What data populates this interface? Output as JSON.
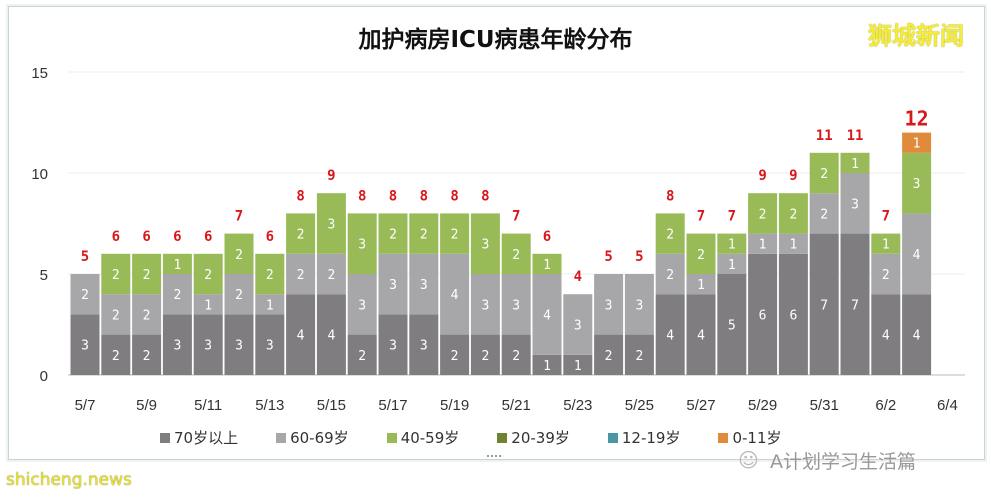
{
  "chart_data": {
    "type": "bar",
    "stacked": true,
    "title": "加护病房ICU病患年龄分布",
    "categories": [
      "5/7",
      "5/8",
      "5/9",
      "5/10",
      "5/11",
      "5/12",
      "5/13",
      "5/14",
      "5/15",
      "5/16",
      "5/17",
      "5/18",
      "5/19",
      "5/20",
      "5/21",
      "5/22",
      "5/23",
      "5/24",
      "5/25",
      "5/26",
      "5/27",
      "5/28",
      "5/29",
      "5/30",
      "5/31",
      "6/1",
      "6/2",
      "6/3"
    ],
    "x_tick_labels": [
      "5/7",
      "5/9",
      "5/11",
      "5/13",
      "5/15",
      "5/17",
      "5/19",
      "5/21",
      "5/23",
      "5/25",
      "5/27",
      "5/29",
      "5/31",
      "6/2",
      "6/4"
    ],
    "ylim": [
      0,
      15
    ],
    "y_ticks": [
      "0",
      "5",
      "10",
      "15"
    ],
    "grid": true,
    "legend_position": "bottom",
    "series": [
      {
        "name": "70岁以上",
        "color": "#7f7d80",
        "values": [
          3,
          2,
          2,
          3,
          3,
          3,
          3,
          4,
          4,
          2,
          3,
          3,
          2,
          2,
          2,
          1,
          1,
          2,
          2,
          4,
          4,
          5,
          6,
          6,
          7,
          7,
          4,
          4
        ]
      },
      {
        "name": "60-69岁",
        "color": "#a7a7a9",
        "values": [
          2,
          2,
          2,
          2,
          1,
          2,
          1,
          2,
          2,
          3,
          3,
          3,
          4,
          3,
          3,
          4,
          3,
          3,
          3,
          2,
          1,
          1,
          1,
          1,
          2,
          3,
          2,
          4
        ]
      },
      {
        "name": "40-59岁",
        "color": "#98bb58",
        "values": [
          0,
          2,
          2,
          1,
          2,
          2,
          2,
          2,
          3,
          3,
          2,
          2,
          2,
          3,
          2,
          1,
          0,
          0,
          0,
          2,
          2,
          1,
          2,
          2,
          2,
          1,
          1,
          3
        ]
      },
      {
        "name": "20-39岁",
        "color": "#6f8433",
        "values": [
          0,
          0,
          0,
          0,
          0,
          0,
          0,
          0,
          0,
          0,
          0,
          0,
          0,
          0,
          0,
          0,
          0,
          0,
          0,
          0,
          0,
          0,
          0,
          0,
          0,
          0,
          0,
          0
        ]
      },
      {
        "name": "12-19岁",
        "color": "#4a96a6",
        "values": [
          0,
          0,
          0,
          0,
          0,
          0,
          0,
          0,
          0,
          0,
          0,
          0,
          0,
          0,
          0,
          0,
          0,
          0,
          0,
          0,
          0,
          0,
          0,
          0,
          0,
          0,
          0,
          0
        ]
      },
      {
        "name": "0-11岁",
        "color": "#e08a3c",
        "values": [
          0,
          0,
          0,
          0,
          0,
          0,
          0,
          0,
          0,
          0,
          0,
          0,
          0,
          0,
          0,
          0,
          0,
          0,
          0,
          0,
          0,
          0,
          0,
          0,
          0,
          0,
          0,
          1
        ]
      }
    ],
    "totals": [
      5,
      6,
      6,
      6,
      6,
      7,
      6,
      8,
      9,
      8,
      8,
      8,
      8,
      8,
      7,
      6,
      4,
      5,
      5,
      8,
      7,
      7,
      9,
      9,
      11,
      11,
      7,
      12
    ],
    "total_label_color": "#d7191c"
  },
  "watermarks": {
    "brand": "狮城新闻",
    "credit": "shicheng.news",
    "wechat": "A计划学习生活篇"
  }
}
